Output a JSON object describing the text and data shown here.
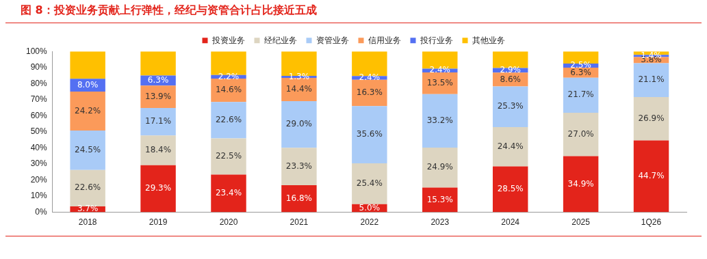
{
  "chart_data": {
    "type": "bar",
    "title": "图 8：投资业务贡献上行弹性，经纪与资管合计占比接近五成",
    "stacked": true,
    "legend": "top",
    "grid": false,
    "categories": [
      "2018",
      "2019",
      "2020",
      "2021",
      "2022",
      "2023",
      "2024",
      "2025",
      "1Q26"
    ],
    "ylim": [
      0,
      100
    ],
    "yticks": [
      {
        "value": 0,
        "label": "0%"
      },
      {
        "value": 10,
        "label": "10%"
      },
      {
        "value": 20,
        "label": "20%"
      },
      {
        "value": 30,
        "label": "30%"
      },
      {
        "value": 40,
        "label": "40%"
      },
      {
        "value": 50,
        "label": "50%"
      },
      {
        "value": 60,
        "label": "60%"
      },
      {
        "value": 70,
        "label": "70%"
      },
      {
        "value": 80,
        "label": "80%"
      },
      {
        "value": 90,
        "label": "90%"
      },
      {
        "value": 100,
        "label": "100%"
      }
    ],
    "series": [
      {
        "name": "投资业务",
        "color": "#e3241b",
        "values": [
          3.7,
          29.3,
          23.4,
          16.8,
          5.0,
          15.3,
          28.5,
          34.9,
          44.7
        ],
        "value_labels": [
          "3.7%",
          "29.3%",
          "23.4%",
          "16.8%",
          "5.0%",
          "15.3%",
          "28.5%",
          "34.9%",
          "44.7%"
        ]
      },
      {
        "name": "经纪业务",
        "color": "#ddd5c1",
        "values": [
          22.6,
          18.4,
          22.5,
          23.3,
          25.4,
          24.9,
          24.4,
          27.0,
          26.9
        ],
        "value_labels": [
          "22.6%",
          "18.4%",
          "22.5%",
          "23.3%",
          "25.4%",
          "24.9%",
          "24.4%",
          "27.0%",
          "26.9%"
        ]
      },
      {
        "name": "资管业务",
        "color": "#a9cbf7",
        "values": [
          24.5,
          17.1,
          22.6,
          29.0,
          35.6,
          33.2,
          25.3,
          21.7,
          21.1
        ],
        "value_labels": [
          "24.5%",
          "17.1%",
          "22.6%",
          "29.0%",
          "35.6%",
          "33.2%",
          "25.3%",
          "21.7%",
          "21.1%"
        ]
      },
      {
        "name": "信用业务",
        "color": "#fb9a5a",
        "values": [
          24.2,
          13.9,
          14.6,
          14.4,
          16.3,
          13.5,
          8.6,
          6.3,
          3.8
        ],
        "value_labels": [
          "24.2%",
          "13.9%",
          "14.6%",
          "14.4%",
          "16.3%",
          "13.5%",
          "8.6%",
          "6.3%",
          "3.8%"
        ]
      },
      {
        "name": "投行业务",
        "color": "#5470f2",
        "values": [
          8.0,
          6.3,
          2.2,
          1.3,
          2.4,
          2.4,
          2.9,
          2.5,
          1.4
        ],
        "value_labels": [
          "8.0%",
          "6.3%",
          "2.2%",
          "1.3%",
          "2.4%",
          "2.4%",
          "2.9%",
          "2.5%",
          "1.4%"
        ]
      },
      {
        "name": "其他业务",
        "color": "#ffc000",
        "values": [
          17.0,
          15.0,
          14.7,
          15.2,
          15.3,
          10.7,
          10.3,
          7.6,
          2.1
        ],
        "value_labels": [
          null,
          null,
          null,
          null,
          null,
          null,
          null,
          null,
          null
        ]
      }
    ]
  }
}
